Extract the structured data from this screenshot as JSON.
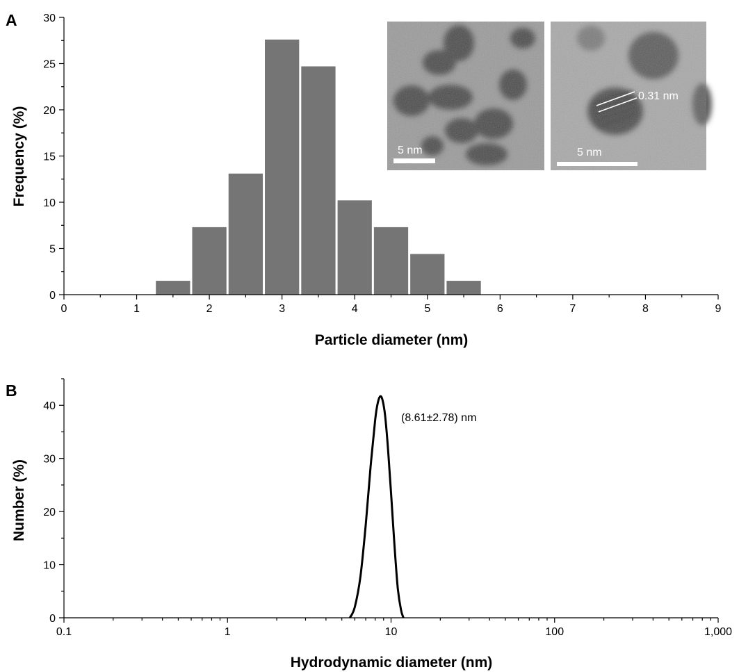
{
  "panels": {
    "a_letter": "A",
    "b_letter": "B"
  },
  "chart_data": [
    {
      "type": "bar",
      "panel": "A",
      "xlabel": "Particle diameter (nm)",
      "ylabel": "Frequency (%)",
      "xlim": [
        0,
        9
      ],
      "ylim": [
        0,
        30
      ],
      "x_ticks": [
        0,
        1,
        2,
        3,
        4,
        5,
        6,
        7,
        8,
        9
      ],
      "y_ticks": [
        0,
        5,
        10,
        15,
        20,
        25,
        30
      ],
      "bin_width": 0.5,
      "bins": [
        {
          "x0": 1.25,
          "x1": 1.75,
          "value": 1.5
        },
        {
          "x0": 1.75,
          "x1": 2.25,
          "value": 7.3
        },
        {
          "x0": 2.25,
          "x1": 2.75,
          "value": 13.1
        },
        {
          "x0": 2.75,
          "x1": 3.25,
          "value": 27.6
        },
        {
          "x0": 3.25,
          "x1": 3.75,
          "value": 24.7
        },
        {
          "x0": 3.75,
          "x1": 4.25,
          "value": 10.2
        },
        {
          "x0": 4.25,
          "x1": 4.75,
          "value": 7.3
        },
        {
          "x0": 4.75,
          "x1": 5.25,
          "value": 4.4
        },
        {
          "x0": 5.25,
          "x1": 5.75,
          "value": 1.5
        }
      ],
      "bar_color": "#757575",
      "insets": [
        {
          "scale_bar_label": "5 nm"
        },
        {
          "scale_bar_label": "5 nm",
          "lattice_label": "0.31 nm"
        }
      ]
    },
    {
      "type": "line",
      "panel": "B",
      "xlabel": "Hydrodynamic diameter (nm)",
      "ylabel": "Number (%)",
      "x_scale": "log",
      "xlim": [
        0.1,
        1000
      ],
      "ylim": [
        0,
        45
      ],
      "x_ticks": [
        0.1,
        1,
        10,
        100,
        1000
      ],
      "x_tick_labels": [
        "0.1",
        "1",
        "10",
        "100",
        "1,000"
      ],
      "y_ticks": [
        0,
        10,
        20,
        30,
        40
      ],
      "annotation": "(8.61±2.78) nm",
      "peak_center": 8.61,
      "peak_value": 41.7,
      "x": [
        5.6,
        6.0,
        6.5,
        7.0,
        7.5,
        8.0,
        8.3,
        8.61,
        8.9,
        9.2,
        9.6,
        10.0,
        10.5,
        11.0,
        11.5,
        11.9
      ],
      "y": [
        0,
        2.0,
        7.8,
        17.5,
        28.5,
        37.3,
        40.5,
        41.7,
        40.8,
        38.0,
        31.5,
        23.5,
        13.5,
        5.5,
        1.5,
        0
      ],
      "line_color": "#000000"
    }
  ]
}
